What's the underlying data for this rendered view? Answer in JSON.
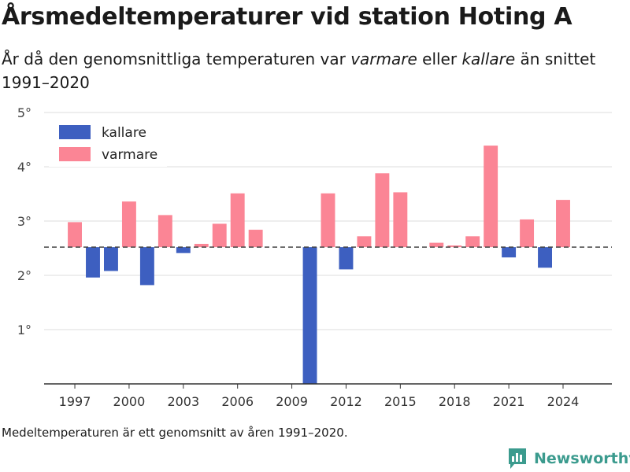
{
  "title": "Årsmedeltemperaturer vid station Hoting A",
  "subtitle": {
    "part1": "År då den genomsnittliga temperaturen var ",
    "warmer": "varmare",
    "part2": " eller ",
    "colder": "kallare",
    "part3": " än snittet 1991–2020"
  },
  "footnote": "Medeltemperaturen är ett genomsnitt av åren 1991–2020.",
  "brand": {
    "name": "Newsworthy",
    "icon": "newsworthy-logo-icon"
  },
  "colors": {
    "colder": "#3d5fc0",
    "warmer": "#fb8595",
    "grid": "#dddddd",
    "axis": "#333333",
    "baseline": "#444444"
  },
  "chart_data": {
    "type": "bar",
    "baseline": 2.52,
    "ylim": [
      0,
      5
    ],
    "yticks": [
      1,
      2,
      3,
      4,
      5
    ],
    "ytick_labels": [
      "1°",
      "2°",
      "3°",
      "4°",
      "5°"
    ],
    "xticks": [
      1997,
      2000,
      2003,
      2006,
      2009,
      2012,
      2015,
      2018,
      2021,
      2024
    ],
    "xtick_labels": [
      "1997",
      "2000",
      "2003",
      "2006",
      "2009",
      "2012",
      "2015",
      "2018",
      "2021",
      "2024"
    ],
    "xlim": [
      1995.3,
      2026.7
    ],
    "legend": {
      "position": "top-left",
      "items": [
        {
          "key": "colder",
          "label": "kallare"
        },
        {
          "key": "warmer",
          "label": "varmare"
        }
      ]
    },
    "grid": true,
    "years": [
      1997,
      1998,
      1999,
      2000,
      2001,
      2002,
      2003,
      2004,
      2005,
      2006,
      2007,
      2010,
      2011,
      2012,
      2013,
      2014,
      2015,
      2017,
      2018,
      2019,
      2020,
      2021,
      2022,
      2023,
      2024
    ],
    "values": [
      2.98,
      1.96,
      2.08,
      3.36,
      1.82,
      3.11,
      2.41,
      2.58,
      2.95,
      3.51,
      2.84,
      0.0,
      3.51,
      2.11,
      2.72,
      3.88,
      3.53,
      2.6,
      2.55,
      2.72,
      4.39,
      2.33,
      3.03,
      2.14,
      3.39
    ]
  }
}
